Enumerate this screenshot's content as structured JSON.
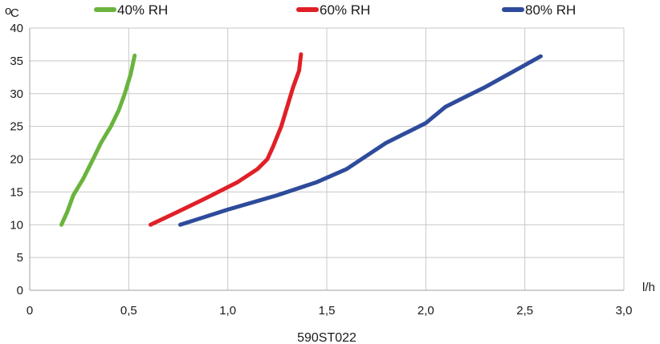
{
  "chart_data": {
    "type": "line",
    "caption": "590ST022",
    "ylabel": "°C",
    "ylabel_prefix": "o",
    "ylabel_main": "C",
    "xlabel": "l/h",
    "xlim": [
      0,
      3.0
    ],
    "ylim": [
      0,
      40
    ],
    "x_ticks": [
      0,
      0.5,
      1.0,
      1.5,
      2.0,
      2.5,
      3.0
    ],
    "x_tick_labels": [
      "0",
      "0,5",
      "1,0",
      "1,5",
      "2,0",
      "2,5",
      "3,0"
    ],
    "y_ticks": [
      0,
      5,
      10,
      15,
      20,
      25,
      30,
      35,
      40
    ],
    "y_tick_labels": [
      "0",
      "5",
      "10",
      "15",
      "20",
      "25",
      "30",
      "35",
      "40"
    ],
    "grid": true,
    "legend_position": "top",
    "series": [
      {
        "name": "40% RH",
        "color": "#6ab43e",
        "points": [
          [
            0.16,
            10
          ],
          [
            0.19,
            12
          ],
          [
            0.22,
            14.5
          ],
          [
            0.27,
            17
          ],
          [
            0.32,
            20
          ],
          [
            0.36,
            22.5
          ],
          [
            0.41,
            25
          ],
          [
            0.45,
            27.5
          ],
          [
            0.48,
            30
          ],
          [
            0.51,
            33
          ],
          [
            0.53,
            35.8
          ]
        ]
      },
      {
        "name": "60% RH",
        "color": "#e02027",
        "points": [
          [
            0.61,
            10
          ],
          [
            0.75,
            12
          ],
          [
            0.9,
            14.2
          ],
          [
            1.05,
            16.5
          ],
          [
            1.15,
            18.5
          ],
          [
            1.2,
            20
          ],
          [
            1.23,
            22
          ],
          [
            1.27,
            25
          ],
          [
            1.3,
            28
          ],
          [
            1.33,
            31
          ],
          [
            1.36,
            33.5
          ],
          [
            1.37,
            36
          ]
        ]
      },
      {
        "name": "80% RH",
        "color": "#2e4b9b",
        "points": [
          [
            0.76,
            10
          ],
          [
            1.0,
            12.3
          ],
          [
            1.25,
            14.5
          ],
          [
            1.45,
            16.5
          ],
          [
            1.6,
            18.5
          ],
          [
            1.8,
            22.5
          ],
          [
            1.9,
            24
          ],
          [
            2.0,
            25.5
          ],
          [
            2.1,
            28
          ],
          [
            2.2,
            29.5
          ],
          [
            2.3,
            31
          ],
          [
            2.45,
            33.5
          ],
          [
            2.58,
            35.7
          ]
        ]
      }
    ]
  }
}
